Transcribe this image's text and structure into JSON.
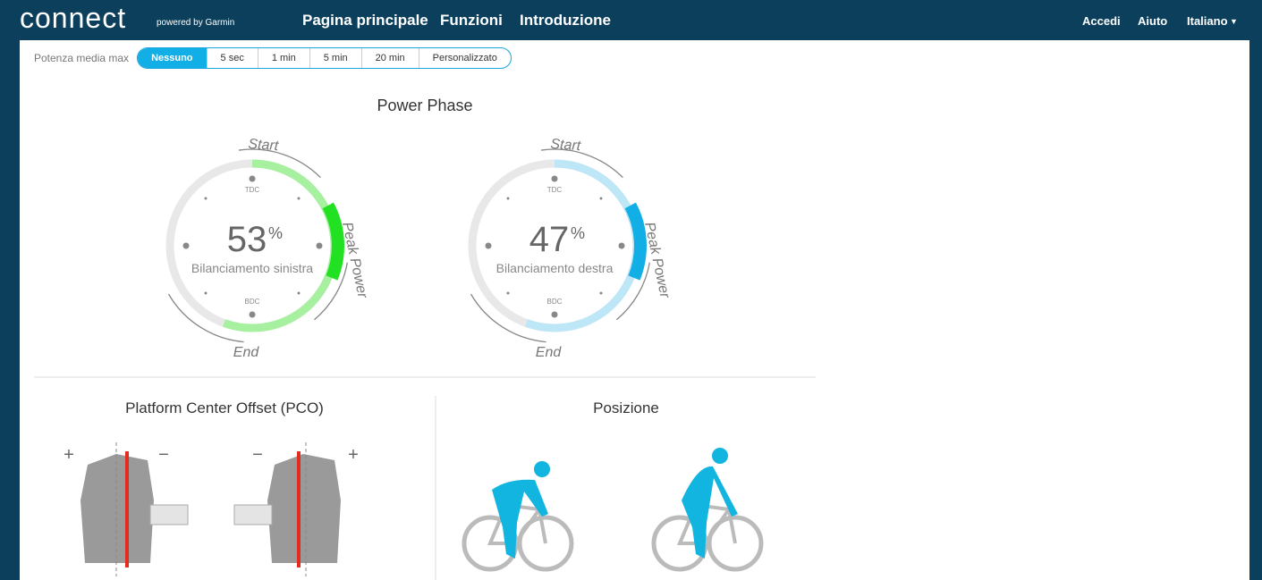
{
  "header": {
    "logo": "connect",
    "logo_sub": "powered by Garmin",
    "nav": [
      "Pagina principale",
      "Funzioni",
      "Introduzione"
    ],
    "right": [
      "Accedi",
      "Aiuto",
      "Italiano"
    ]
  },
  "filter": {
    "label": "Potenza media max",
    "options": [
      "Nessuno",
      "5 sec",
      "1 min",
      "5 min",
      "20 min",
      "Personalizzato"
    ],
    "selected": 0
  },
  "power_phase": {
    "title": "Power Phase",
    "gauges": [
      {
        "value": 53,
        "unit": "%",
        "label": "Bilanciamento sinistra",
        "start": "Start",
        "end": "End",
        "peak": "Peak Power",
        "tdc": "TDC",
        "bdc": "BDC",
        "color": "#a6f0a0",
        "peak_color": "#22e022"
      },
      {
        "value": 47,
        "unit": "%",
        "label": "Bilanciamento destra",
        "start": "Start",
        "end": "End",
        "peak": "Peak Power",
        "tdc": "TDC",
        "bdc": "BDC",
        "color": "#bde6f6",
        "peak_color": "#12aee6"
      }
    ]
  },
  "pco": {
    "title": "Platform Center Offset (PCO)",
    "signs": [
      "+",
      "−",
      "−",
      "+"
    ]
  },
  "position": {
    "title": "Posizione"
  }
}
